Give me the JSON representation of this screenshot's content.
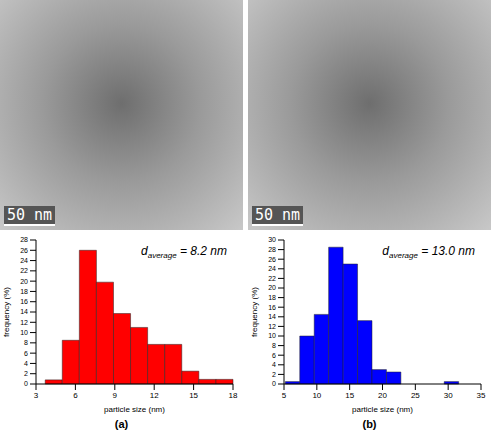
{
  "chart_data": [
    {
      "type": "histogram",
      "panel": "(a)",
      "scale_bar": "50 nm",
      "bins": [
        3.7,
        5.0,
        6.3,
        7.6,
        8.9,
        10.2,
        11.5,
        12.8,
        14.1,
        15.4,
        16.7,
        18.0
      ],
      "values": [
        0.8,
        8.5,
        26,
        19.8,
        13.7,
        11,
        7.7,
        7.7,
        2.5,
        0.9,
        0.9
      ],
      "color": "#ff0000",
      "xlim": [
        3,
        18
      ],
      "xticks": [
        3,
        6,
        9,
        12,
        15,
        18
      ],
      "ylim": [
        0,
        28
      ],
      "yticks": [
        0,
        2,
        4,
        6,
        8,
        10,
        12,
        14,
        16,
        18,
        20,
        22,
        24,
        26,
        28
      ],
      "x_label": "particle size (nm)",
      "y_label": "frequency (%)",
      "annotation": {
        "symbol": "d",
        "subscript": "average",
        "text": "= 8.2 nm"
      }
    },
    {
      "type": "histogram",
      "panel": "(b)",
      "scale_bar": "50 nm",
      "bins": [
        5.2,
        7.4,
        9.6,
        11.8,
        14.0,
        16.2,
        18.4,
        20.6,
        22.8,
        25.0,
        27.2,
        29.4,
        31.6
      ],
      "values": [
        0.5,
        10,
        14.5,
        28.5,
        25,
        13.2,
        3,
        2.5,
        0,
        0,
        0,
        0.5
      ],
      "color": "#0000ff",
      "xlim": [
        5,
        35
      ],
      "xticks": [
        5,
        10,
        15,
        20,
        25,
        30,
        35
      ],
      "ylim": [
        0,
        30
      ],
      "yticks": [
        0,
        2,
        4,
        6,
        8,
        10,
        12,
        14,
        16,
        18,
        20,
        22,
        24,
        26,
        28,
        30
      ],
      "x_label": "particle size (nm)",
      "y_label": "frequency (%)",
      "annotation": {
        "symbol": "d",
        "subscript": "average",
        "text": "= 13.0 nm"
      }
    }
  ]
}
